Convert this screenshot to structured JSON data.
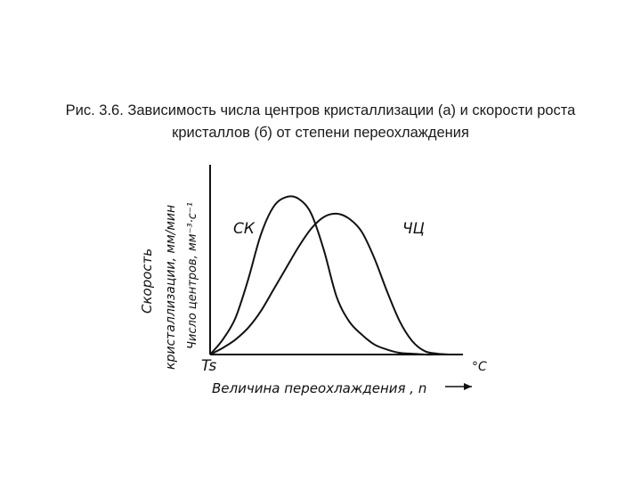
{
  "caption": {
    "line1": "Рис. 3.6. Зависимость числа центров кристаллизации (а) и скорости роста",
    "line2": "кристаллов (б) от степени переохлаждения"
  },
  "chart_data": {
    "type": "line",
    "xlabel": "Величина переохлаждения , n",
    "x_unit": "°C",
    "x_origin_label": "Ts",
    "ylabel_lines": [
      "Скорость",
      "кристаллизации, мм/мин",
      "Число центров, мм⁻³·с⁻¹"
    ],
    "xlim": [
      0,
      10
    ],
    "ylim": [
      0,
      10
    ],
    "grid": false,
    "series": [
      {
        "name": "СК",
        "x": [
          0,
          0.5,
          1,
          1.5,
          2,
          2.5,
          3,
          3.5,
          4,
          4.5,
          5,
          5.5,
          6,
          6.5,
          7,
          7.5,
          8,
          8.5,
          9
        ],
        "y": [
          0,
          0.9,
          2.2,
          4.5,
          7.2,
          8.9,
          9.5,
          9.4,
          8.5,
          6.3,
          3.5,
          2.0,
          1.2,
          0.6,
          0.3,
          0.1,
          0.05,
          0,
          0
        ]
      },
      {
        "name": "ЧЦ",
        "x": [
          0,
          0.5,
          1,
          1.5,
          2,
          2.5,
          3,
          3.5,
          4,
          4.5,
          5,
          5.5,
          6,
          6.5,
          7,
          7.5,
          8,
          8.5,
          9,
          9.5
        ],
        "y": [
          0,
          0.4,
          0.9,
          1.6,
          2.6,
          3.9,
          5.2,
          6.5,
          7.6,
          8.3,
          8.5,
          8.2,
          7.4,
          5.8,
          3.8,
          2.0,
          0.8,
          0.2,
          0.05,
          0
        ]
      }
    ]
  }
}
